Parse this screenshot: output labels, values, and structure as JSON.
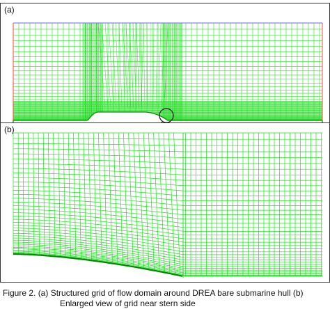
{
  "figure": {
    "panel_a_label": "(a)",
    "panel_b_label": "(b)",
    "caption_line1": "Figure 2. (a) Structured grid of flow domain around DREA bare submarine hull (b)",
    "caption_line2": "Enlarged view of grid near stern side"
  },
  "colors": {
    "grid": "#22dd22",
    "grid_dense": "#11cc11",
    "hull": "#008800",
    "border": "#333333",
    "boundary_blue": "#6666ff",
    "boundary_red": "#ff4444"
  }
}
